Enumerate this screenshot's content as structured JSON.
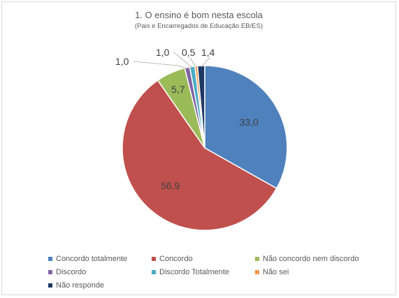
{
  "chart_data": {
    "type": "pie",
    "title": "1. O ensino é bom nesta escola",
    "subtitle": "(Pais e Encarregados de Educação EB/ES)",
    "legend_position": "bottom",
    "slices": [
      {
        "name": "Concordo totalmente",
        "value": 33.0,
        "label": "33,0",
        "color": "#4f81bd"
      },
      {
        "name": "Concordo",
        "value": 56.9,
        "label": "56,9",
        "color": "#c0504d"
      },
      {
        "name": "Não concordo nem discordo",
        "value": 5.7,
        "label": "5,7",
        "color": "#9bbb59"
      },
      {
        "name": "Discordo",
        "value": 1.0,
        "label": "1,0",
        "color": "#8064a2"
      },
      {
        "name": "Discordo Totalmente",
        "value": 1.0,
        "label": "1,0",
        "color": "#4bacc6"
      },
      {
        "name": "Não sei",
        "value": 0.5,
        "label": "0,5",
        "color": "#f79646"
      },
      {
        "name": "Não responde",
        "value": 1.4,
        "label": "1,4",
        "color": "#1f3864"
      }
    ]
  }
}
